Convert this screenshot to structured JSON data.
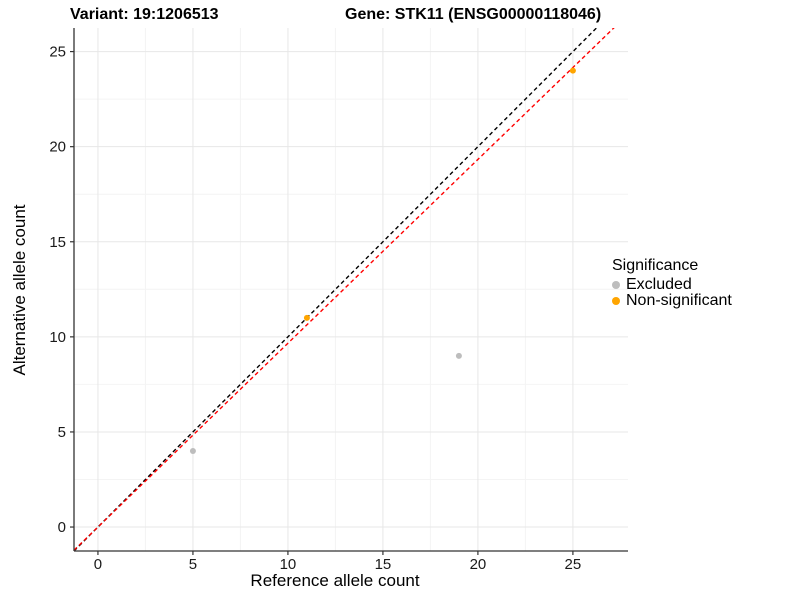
{
  "header": {
    "left_title": "Variant: 19:1206513",
    "right_title": "Gene: STK11 (ENSG00000118046)"
  },
  "chart_data": {
    "type": "scatter",
    "xlabel": "Reference allele count",
    "ylabel": "Alternative allele count",
    "xlim": [
      -1.26,
      27.9
    ],
    "ylim": [
      -1.26,
      26.24
    ],
    "xticks": [
      0,
      5,
      10,
      15,
      20,
      25
    ],
    "yticks": [
      0,
      5,
      10,
      15,
      20,
      25
    ],
    "xticks_minor": [
      2.5,
      7.5,
      12.5,
      17.5,
      22.5
    ],
    "yticks_minor": [
      2.5,
      7.5,
      12.5,
      17.5,
      22.5
    ],
    "grid": true,
    "colors": {
      "background": "#ffffff",
      "grid_major": "#e7e7e7",
      "grid_minor": "#f4f4f4",
      "axis": "#333333",
      "tick_label": "#1a1a1a"
    },
    "series": [
      {
        "name": "Excluded",
        "color": "#bdbdbd",
        "points": [
          [
            5,
            4
          ],
          [
            19,
            9
          ]
        ]
      },
      {
        "name": "Non-significant",
        "color": "#ffa500",
        "points": [
          [
            11,
            11
          ],
          [
            25,
            24
          ]
        ]
      }
    ],
    "lines": [
      {
        "name": "identity-line",
        "color": "#000000",
        "slope": 1.0,
        "intercept": 0,
        "dash": "4 3"
      },
      {
        "name": "fit-line",
        "color": "#ff0000",
        "slope": 0.9665,
        "intercept": 0,
        "dash": "4 3"
      }
    ],
    "legend": {
      "title": "Significance",
      "position": "right",
      "entries": [
        {
          "label": "Excluded",
          "color": "#bdbdbd"
        },
        {
          "label": "Non-significant",
          "color": "#ffa500"
        }
      ]
    }
  }
}
